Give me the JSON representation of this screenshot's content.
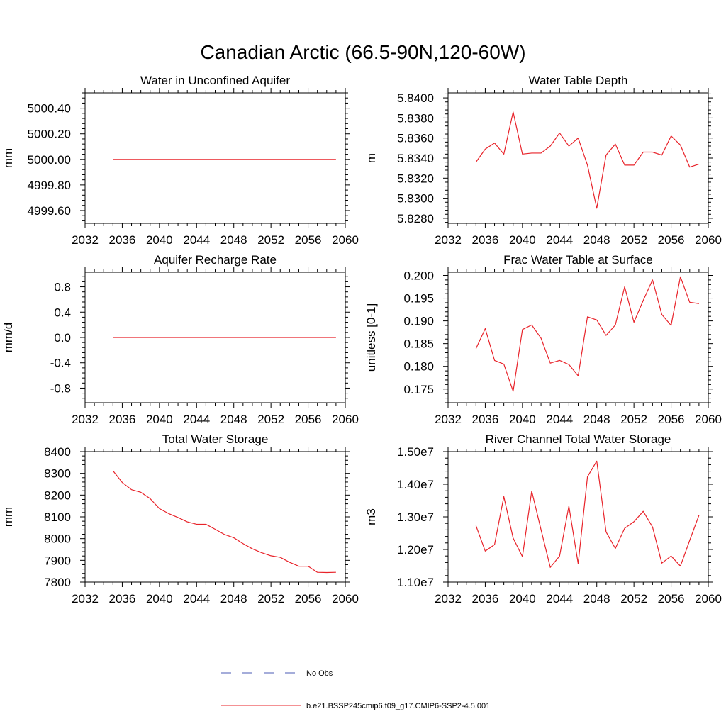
{
  "figure_title": "Canadian Arctic (66.5-90N,120-60W)",
  "colors": {
    "model": "#e8232a",
    "obs": "#4b5bb4",
    "axis": "#000000"
  },
  "legend": {
    "obs_label": "No Obs",
    "model_label": "b.e21.BSSP245cmip6.f09_g17.CMIP6-SSP2-4.5.001"
  },
  "chart_data": [
    {
      "type": "line",
      "title": "Water in Unconfined Aquifer",
      "ylabel": "mm",
      "xlim": [
        2032,
        2060
      ],
      "ylim": [
        4999.5,
        5000.52
      ],
      "xticks": [
        "2032",
        "2036",
        "2040",
        "2044",
        "2048",
        "2052",
        "2056",
        "2060"
      ],
      "yticks": [
        {
          "v": 4999.6,
          "label": "4999.60"
        },
        {
          "v": 4999.8,
          "label": "4999.80"
        },
        {
          "v": 5000.0,
          "label": "5000.00"
        },
        {
          "v": 5000.2,
          "label": "5000.20"
        },
        {
          "v": 5000.4,
          "label": "5000.40"
        }
      ],
      "x": [
        2035,
        2036,
        2037,
        2038,
        2039,
        2040,
        2041,
        2042,
        2043,
        2044,
        2045,
        2046,
        2047,
        2048,
        2049,
        2050,
        2051,
        2052,
        2053,
        2054,
        2055,
        2056,
        2057,
        2058,
        2059
      ],
      "y": [
        5000.0,
        5000.0,
        5000.0,
        5000.0,
        5000.0,
        5000.0,
        5000.0,
        5000.0,
        5000.0,
        5000.0,
        5000.0,
        5000.0,
        5000.0,
        5000.0,
        5000.0,
        5000.0,
        5000.0,
        5000.0,
        5000.0,
        5000.0,
        5000.0,
        5000.0,
        5000.0,
        5000.0,
        5000.0
      ]
    },
    {
      "type": "line",
      "title": "Water Table Depth",
      "ylabel": "m",
      "xlim": [
        2032,
        2060
      ],
      "ylim": [
        5.8275,
        5.8405
      ],
      "xticks": [
        "2032",
        "2036",
        "2040",
        "2044",
        "2048",
        "2052",
        "2056",
        "2060"
      ],
      "yticks": [
        {
          "v": 5.828,
          "label": "5.8280"
        },
        {
          "v": 5.83,
          "label": "5.8300"
        },
        {
          "v": 5.832,
          "label": "5.8320"
        },
        {
          "v": 5.834,
          "label": "5.8340"
        },
        {
          "v": 5.836,
          "label": "5.8360"
        },
        {
          "v": 5.838,
          "label": "5.8380"
        },
        {
          "v": 5.84,
          "label": "5.8400"
        }
      ],
      "x": [
        2035,
        2036,
        2037,
        2038,
        2039,
        2040,
        2041,
        2042,
        2043,
        2044,
        2045,
        2046,
        2047,
        2048,
        2049,
        2050,
        2051,
        2052,
        2053,
        2054,
        2055,
        2056,
        2057,
        2058,
        2059
      ],
      "y": [
        5.8336,
        5.8349,
        5.8355,
        5.8344,
        5.8386,
        5.8344,
        5.8345,
        5.8345,
        5.8352,
        5.8365,
        5.8352,
        5.836,
        5.8333,
        5.829,
        5.8343,
        5.8354,
        5.8333,
        5.8333,
        5.8346,
        5.8346,
        5.8343,
        5.8362,
        5.8353,
        5.8331,
        5.8334
      ]
    },
    {
      "type": "line",
      "title": "Aquifer Recharge Rate",
      "ylabel": "mm/d",
      "xlim": [
        2032,
        2060
      ],
      "ylim": [
        -1.03,
        1.03
      ],
      "xticks": [
        "2032",
        "2036",
        "2040",
        "2044",
        "2048",
        "2052",
        "2056",
        "2060"
      ],
      "yticks": [
        {
          "v": -0.8,
          "label": "-0.8"
        },
        {
          "v": -0.4,
          "label": "-0.4"
        },
        {
          "v": 0.0,
          "label": "0.0"
        },
        {
          "v": 0.4,
          "label": "0.4"
        },
        {
          "v": 0.8,
          "label": "0.8"
        }
      ],
      "x": [
        2035,
        2036,
        2037,
        2038,
        2039,
        2040,
        2041,
        2042,
        2043,
        2044,
        2045,
        2046,
        2047,
        2048,
        2049,
        2050,
        2051,
        2052,
        2053,
        2054,
        2055,
        2056,
        2057,
        2058,
        2059
      ],
      "y": [
        0,
        0,
        0,
        0,
        0,
        0,
        0,
        0,
        0,
        0,
        0,
        0,
        0,
        0,
        0,
        0,
        0,
        0,
        0,
        0,
        0,
        0,
        0,
        0,
        0
      ]
    },
    {
      "type": "line",
      "title": "Frac Water Table at Surface",
      "ylabel": "unitless [0-1]",
      "xlim": [
        2032,
        2060
      ],
      "ylim": [
        0.172,
        0.2007
      ],
      "xticks": [
        "2032",
        "2036",
        "2040",
        "2044",
        "2048",
        "2052",
        "2056",
        "2060"
      ],
      "yticks": [
        {
          "v": 0.175,
          "label": "0.175"
        },
        {
          "v": 0.18,
          "label": "0.180"
        },
        {
          "v": 0.185,
          "label": "0.185"
        },
        {
          "v": 0.19,
          "label": "0.190"
        },
        {
          "v": 0.195,
          "label": "0.195"
        },
        {
          "v": 0.2,
          "label": "0.200"
        }
      ],
      "x": [
        2035,
        2036,
        2037,
        2038,
        2039,
        2040,
        2041,
        2042,
        2043,
        2044,
        2045,
        2046,
        2047,
        2048,
        2049,
        2050,
        2051,
        2052,
        2053,
        2054,
        2055,
        2056,
        2057,
        2058,
        2059
      ],
      "y": [
        0.1839,
        0.1883,
        0.1813,
        0.1805,
        0.1745,
        0.1881,
        0.1891,
        0.1862,
        0.1807,
        0.1813,
        0.1804,
        0.1779,
        0.1909,
        0.1902,
        0.1868,
        0.1891,
        0.1975,
        0.1897,
        0.1945,
        0.199,
        0.1914,
        0.189,
        0.1997,
        0.1941,
        0.1938
      ]
    },
    {
      "type": "line",
      "title": "Total Water Storage",
      "ylabel": "mm",
      "xlim": [
        2032,
        2060
      ],
      "ylim": [
        7800,
        8400
      ],
      "xticks": [
        "2032",
        "2036",
        "2040",
        "2044",
        "2048",
        "2052",
        "2056",
        "2060"
      ],
      "yticks": [
        {
          "v": 7800,
          "label": "7800"
        },
        {
          "v": 7900,
          "label": "7900"
        },
        {
          "v": 8000,
          "label": "8000"
        },
        {
          "v": 8100,
          "label": "8100"
        },
        {
          "v": 8200,
          "label": "8200"
        },
        {
          "v": 8300,
          "label": "8300"
        },
        {
          "v": 8400,
          "label": "8400"
        }
      ],
      "x": [
        2035,
        2036,
        2037,
        2038,
        2039,
        2040,
        2041,
        2042,
        2043,
        2044,
        2045,
        2046,
        2047,
        2048,
        2049,
        2050,
        2051,
        2052,
        2053,
        2054,
        2055,
        2056,
        2057,
        2058,
        2059
      ],
      "y": [
        8312,
        8258,
        8225,
        8213,
        8184,
        8138,
        8115,
        8097,
        8077,
        8066,
        8066,
        8043,
        8019,
        8004,
        7977,
        7953,
        7935,
        7921,
        7914,
        7891,
        7873,
        7873,
        7845,
        7844,
        7845
      ]
    },
    {
      "type": "line",
      "title": "River Channel Total Water Storage",
      "ylabel": "m3",
      "xlim": [
        2032,
        2060
      ],
      "ylim": [
        11000000,
        15000000
      ],
      "xticks": [
        "2032",
        "2036",
        "2040",
        "2044",
        "2048",
        "2052",
        "2056",
        "2060"
      ],
      "yticks": [
        {
          "v": 11000000,
          "label": "1.10e7"
        },
        {
          "v": 12000000,
          "label": "1.20e7"
        },
        {
          "v": 13000000,
          "label": "1.30e7"
        },
        {
          "v": 14000000,
          "label": "1.40e7"
        },
        {
          "v": 15000000,
          "label": "1.50e7"
        }
      ],
      "x": [
        2035,
        2036,
        2037,
        2038,
        2039,
        2040,
        2041,
        2042,
        2043,
        2044,
        2045,
        2046,
        2047,
        2048,
        2049,
        2050,
        2051,
        2052,
        2053,
        2054,
        2055,
        2056,
        2057,
        2058,
        2059
      ],
      "y": [
        12730000,
        11950000,
        12150000,
        13620000,
        12350000,
        11780000,
        13790000,
        12610000,
        11450000,
        11800000,
        13330000,
        11560000,
        14230000,
        14710000,
        12540000,
        12030000,
        12650000,
        12850000,
        13170000,
        12690000,
        11580000,
        11800000,
        11490000,
        12280000,
        13050000
      ]
    }
  ]
}
